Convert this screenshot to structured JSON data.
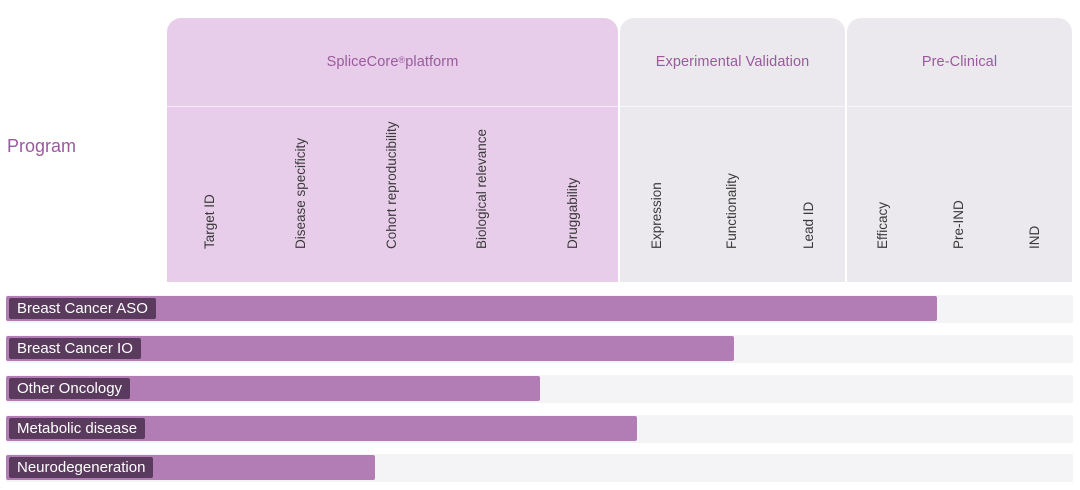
{
  "header": {
    "program_label": "Program"
  },
  "phases": [
    {
      "title": "SpliceCore",
      "title_sup": "®",
      "title_suffix": " platform",
      "columns": [
        "Target ID",
        "Disease specificity",
        "Cohort reproducibility",
        "Biological relevance",
        "Druggability"
      ]
    },
    {
      "title": "Experimental Validation",
      "title_sup": "",
      "title_suffix": "",
      "columns": [
        "Expression",
        "Functionality",
        "Lead ID"
      ]
    },
    {
      "title": "Pre-Clinical",
      "title_sup": "",
      "title_suffix": "",
      "columns": [
        "Efficacy",
        "Pre-IND",
        "IND"
      ]
    }
  ],
  "colors": {
    "bar": "#b27cb5",
    "tag_bg": "#5a3b5d",
    "platform_bg": "#e8cdea",
    "phase_bg": "#ebe9ee",
    "track_bg": "#f4f4f6",
    "accent_text": "#9a5a9c"
  },
  "chart_data": {
    "type": "bar",
    "orientation": "horizontal",
    "title": "",
    "xlabel": "",
    "ylabel": "Program",
    "stages": [
      "Target ID",
      "Disease specificity",
      "Cohort reproducibility",
      "Biological relevance",
      "Druggability",
      "Expression",
      "Functionality",
      "Lead ID",
      "Efficacy",
      "Pre-IND",
      "IND"
    ],
    "categories": [
      "Breast Cancer ASO",
      "Breast Cancer IO",
      "Other Oncology",
      "Metabolic disease",
      "Neurodegeneration"
    ],
    "values": [
      9.6,
      7.5,
      5.5,
      6.5,
      3.8
    ],
    "xlim": [
      0,
      11
    ]
  }
}
